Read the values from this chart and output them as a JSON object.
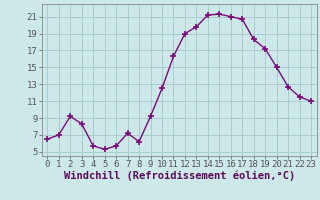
{
  "x": [
    0,
    1,
    2,
    3,
    4,
    5,
    6,
    7,
    8,
    9,
    10,
    11,
    12,
    13,
    14,
    15,
    16,
    17,
    18,
    19,
    20,
    21,
    22,
    23
  ],
  "y": [
    6.5,
    7.0,
    9.2,
    8.3,
    5.7,
    5.3,
    5.7,
    7.2,
    6.2,
    9.2,
    12.5,
    16.3,
    19.0,
    19.8,
    21.2,
    21.3,
    21.0,
    20.7,
    18.3,
    17.2,
    15.0,
    12.7,
    11.5,
    11.0
  ],
  "line_color": "#7b0a7b",
  "marker": "+",
  "marker_size": 4,
  "marker_lw": 1.2,
  "line_width": 1.0,
  "bg_color": "#cce8e8",
  "grid_color": "#aacccc",
  "xlabel": "Windchill (Refroidissement éolien,°C)",
  "xlabel_fontsize": 7.5,
  "xlim": [
    -0.5,
    23.5
  ],
  "ylim": [
    4.5,
    22.5
  ],
  "yticks": [
    5,
    7,
    9,
    11,
    13,
    15,
    17,
    19,
    21
  ],
  "xticks": [
    0,
    1,
    2,
    3,
    4,
    5,
    6,
    7,
    8,
    9,
    10,
    11,
    12,
    13,
    14,
    15,
    16,
    17,
    18,
    19,
    20,
    21,
    22,
    23
  ],
  "tick_fontsize": 6.5,
  "spine_color": "#888888",
  "tick_color": "#555555"
}
